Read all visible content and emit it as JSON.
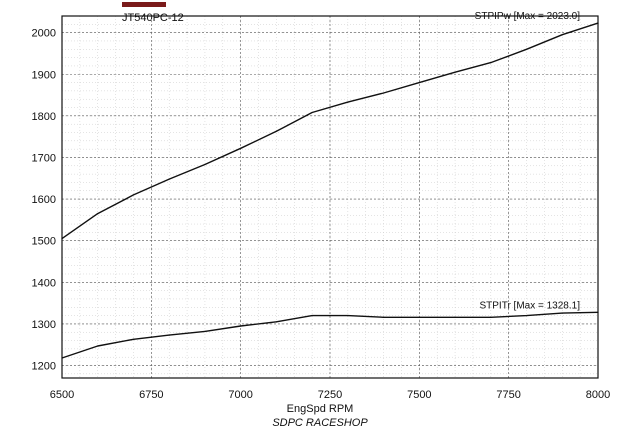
{
  "legend": {
    "label": "JT540PC-12",
    "color": "#7a1a1a"
  },
  "footer": "SDPC RACESHOP",
  "chart_data": {
    "type": "line",
    "xlabel": "EngSpd RPM",
    "ylabel": "",
    "xlim": [
      6500,
      8000
    ],
    "ylim": [
      1170,
      2040
    ],
    "xticks": [
      6500,
      6750,
      7000,
      7250,
      7500,
      7750,
      8000
    ],
    "yticks": [
      1200,
      1300,
      1400,
      1500,
      1600,
      1700,
      1800,
      1900,
      2000
    ],
    "x_minor_step": 50,
    "y_minor_step": 20,
    "grid": true,
    "series": [
      {
        "name": "STPIPw [Max = 2023.0]",
        "color": "#111111",
        "x": [
          6500,
          6600,
          6700,
          6800,
          6900,
          7000,
          7100,
          7200,
          7300,
          7400,
          7500,
          7600,
          7700,
          7800,
          7900,
          8000
        ],
        "y": [
          1505,
          1565,
          1610,
          1648,
          1683,
          1722,
          1763,
          1808,
          1833,
          1855,
          1880,
          1905,
          1928,
          1960,
          1995,
          2023
        ]
      },
      {
        "name": "STPITr [Max = 1328.1]",
        "color": "#111111",
        "x": [
          6500,
          6600,
          6700,
          6800,
          6900,
          7000,
          7100,
          7200,
          7300,
          7400,
          7500,
          7600,
          7700,
          7800,
          7900,
          8000
        ],
        "y": [
          1218,
          1247,
          1263,
          1273,
          1282,
          1295,
          1305,
          1320,
          1320,
          1316,
          1316,
          1316,
          1316,
          1320,
          1326,
          1328
        ]
      }
    ]
  }
}
